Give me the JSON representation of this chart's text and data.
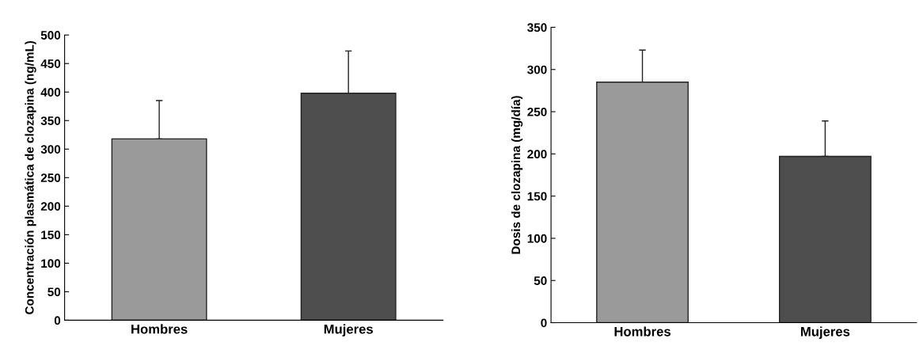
{
  "chart_data": [
    {
      "type": "bar",
      "categories": [
        "Hombres",
        "Mujeres"
      ],
      "values": [
        318,
        398
      ],
      "colors": [
        "#9a9a9a",
        "#4e4e4e"
      ],
      "errors": [
        [
          318,
          385
        ],
        [
          398,
          472
        ]
      ],
      "ylabel": "Concentración plasmática de clozapina (ng/mL)",
      "ylim": [
        0,
        500
      ],
      "yticks": [
        0,
        50,
        100,
        150,
        200,
        250,
        300,
        350,
        400,
        450,
        500
      ],
      "grid": false
    },
    {
      "type": "bar",
      "categories": [
        "Hombres",
        "Mujeres"
      ],
      "values": [
        285,
        197
      ],
      "colors": [
        "#9a9a9a",
        "#4e4e4e"
      ],
      "errors": [
        [
          285,
          323
        ],
        [
          197,
          239
        ]
      ],
      "ylabel": "Dosis de clozapina (mg/día)",
      "ylim": [
        0,
        350
      ],
      "yticks": [
        0,
        50,
        100,
        150,
        200,
        250,
        300,
        350
      ],
      "grid": false
    }
  ]
}
